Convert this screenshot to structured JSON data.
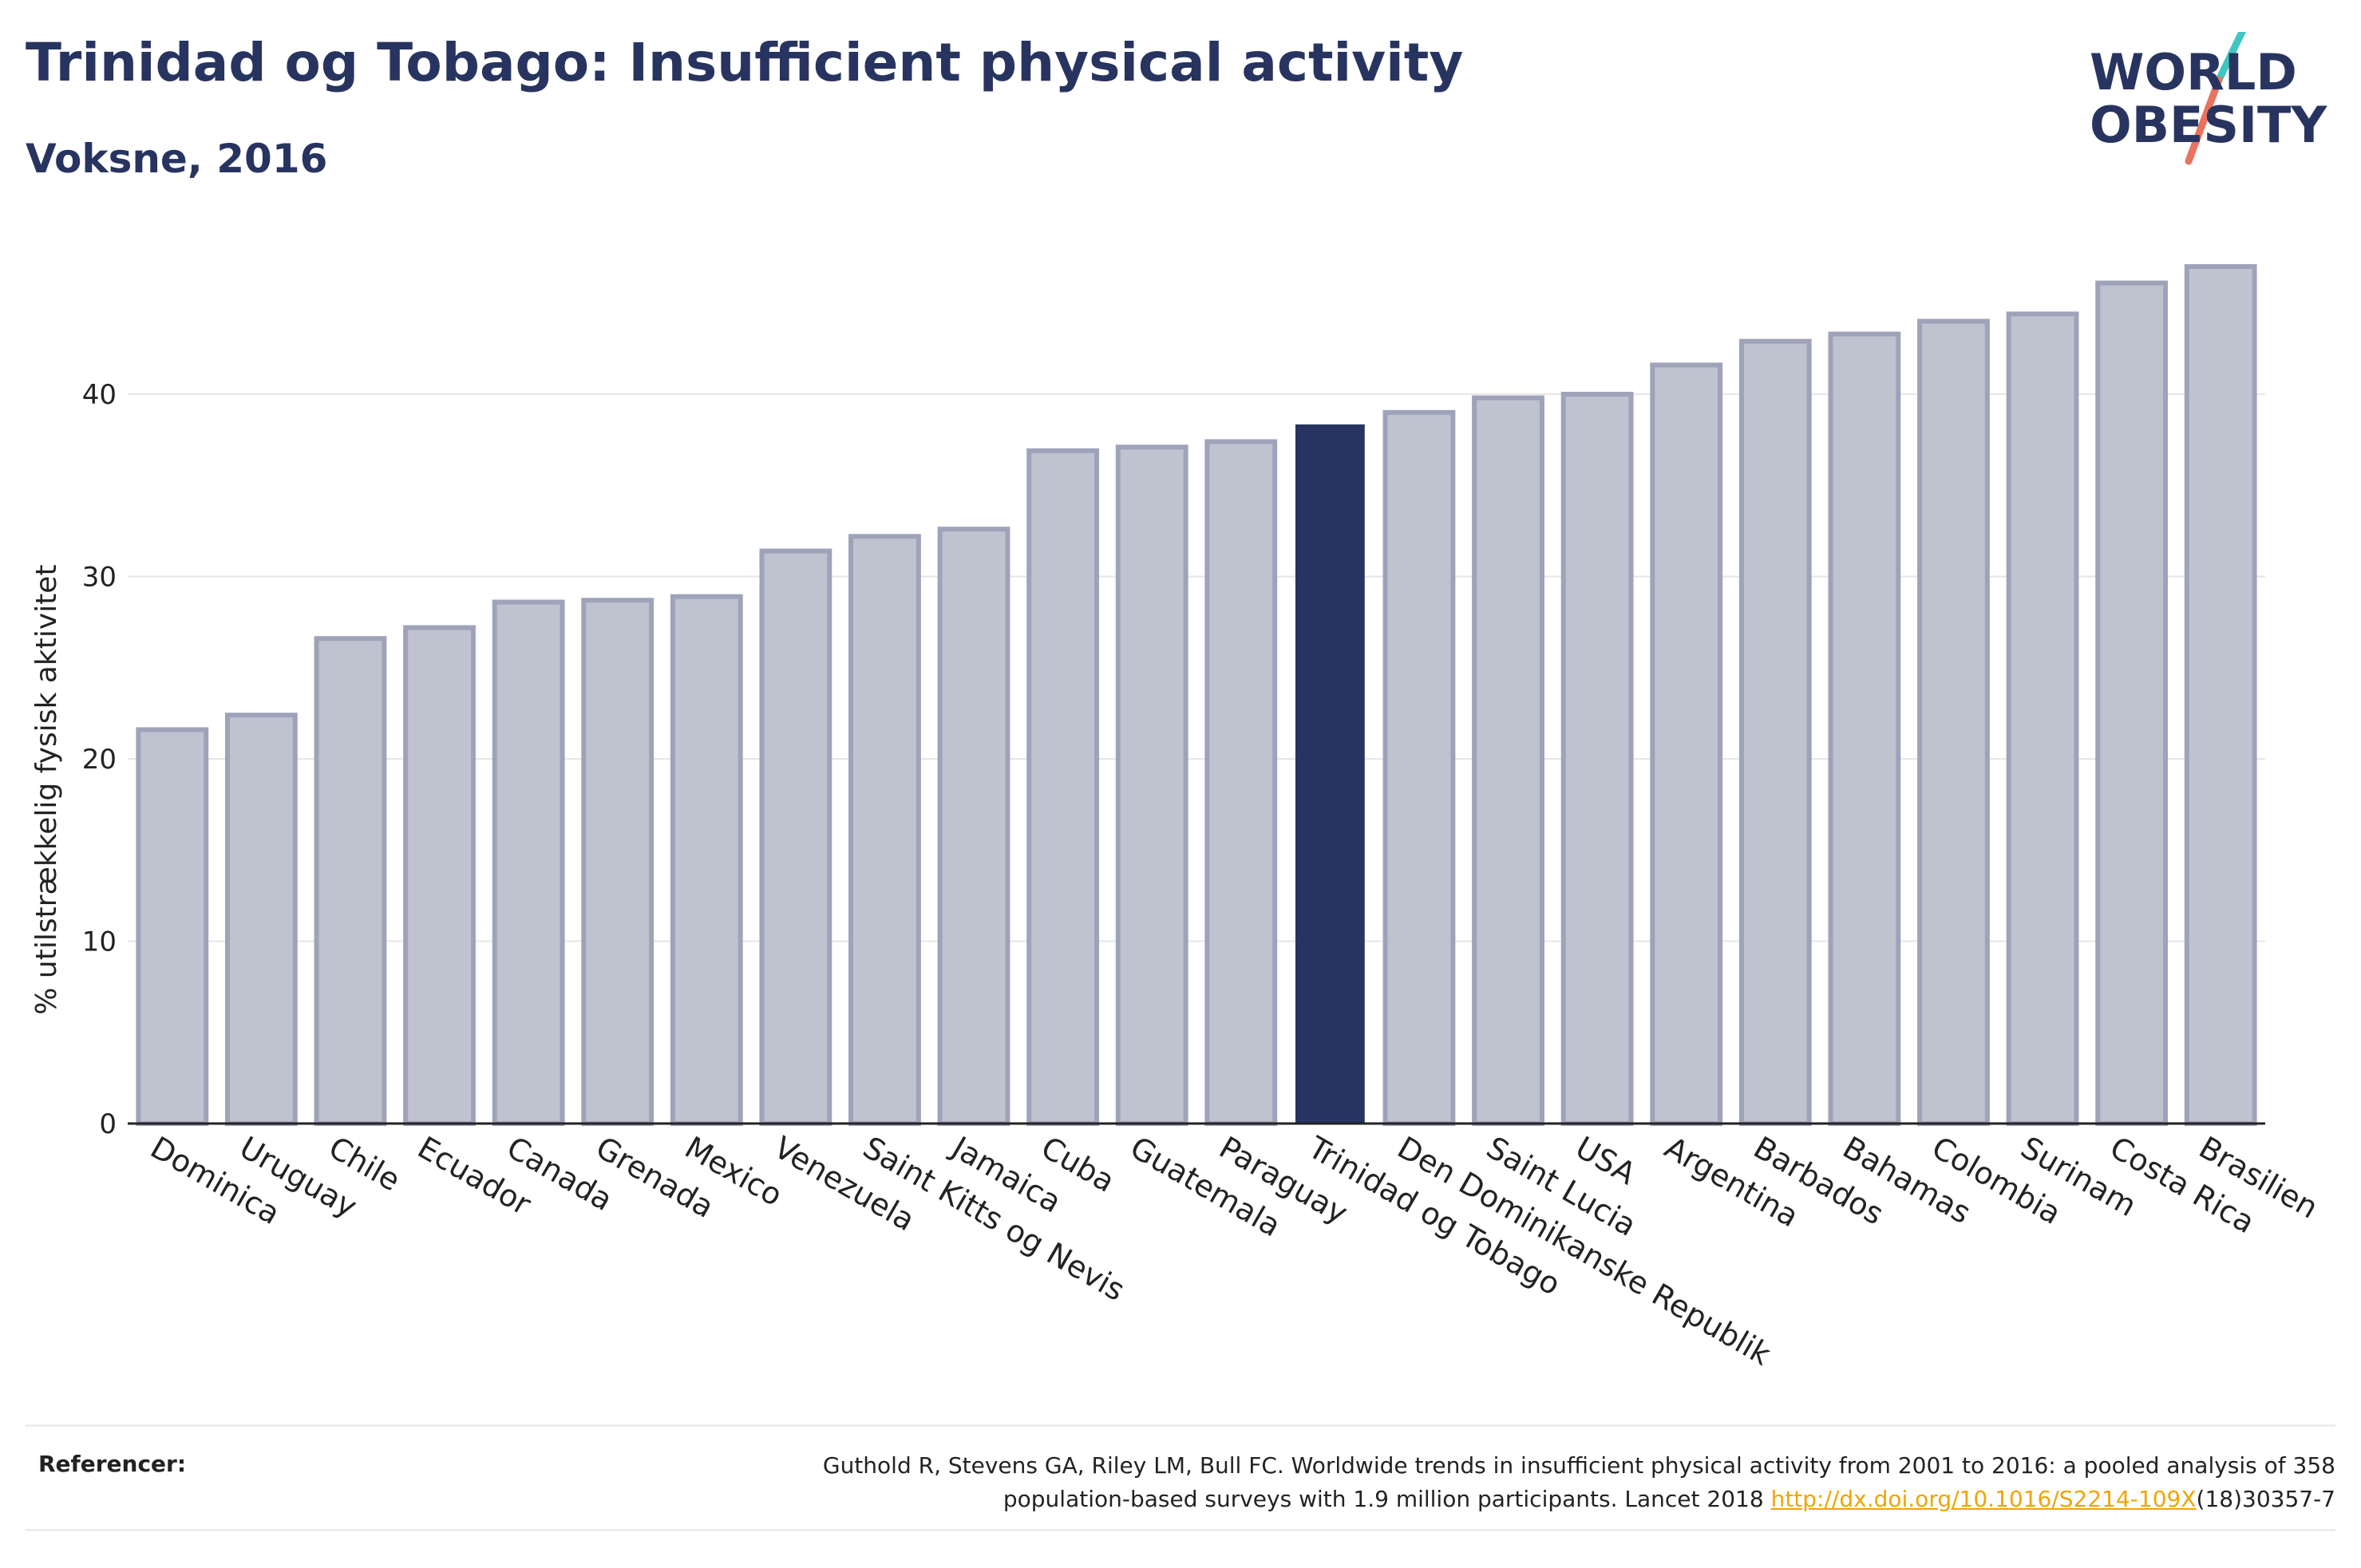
{
  "header": {
    "title": "Trinidad og Tobago: Insufficient physical activity",
    "subtitle": "Voksne, 2016"
  },
  "logo": {
    "line1": "WORLD",
    "line2": "OBESITY"
  },
  "colors": {
    "accent": "#283460",
    "bar_muted": "#bfc2cf",
    "bar_stroke": "#9ea3ba",
    "logo_teal": "#3ec7c0",
    "logo_coral": "#e8735e"
  },
  "chart_data": {
    "type": "bar",
    "ylabel": "% utilstrækkelig fysisk aktivitet",
    "ylim": [
      0,
      48
    ],
    "yticks": [
      0,
      10,
      20,
      30,
      40
    ],
    "grid": true,
    "highlight": "Trinidad og Tobago",
    "categories": [
      "Dominica",
      "Uruguay",
      "Chile",
      "Ecuador",
      "Canada",
      "Grenada",
      "Mexico",
      "Venezuela",
      "Saint Kitts og Nevis",
      "Jamaica",
      "Cuba",
      "Guatemala",
      "Paraguay",
      "Trinidad og Tobago",
      "Den Dominikanske Republik",
      "Saint Lucia",
      "USA",
      "Argentina",
      "Barbados",
      "Bahamas",
      "Colombia",
      "Surinam",
      "Costa Rica",
      "Brasilien"
    ],
    "values": [
      21.6,
      22.4,
      26.6,
      27.2,
      28.6,
      28.7,
      28.9,
      31.4,
      32.2,
      32.6,
      36.9,
      37.1,
      37.4,
      38.3,
      39.0,
      39.8,
      40.0,
      41.6,
      42.9,
      43.3,
      44.0,
      44.4,
      46.1,
      47.0
    ]
  },
  "footer": {
    "label": "Referencer:",
    "text_part1": "Guthold R, Stevens GA, Riley LM, Bull FC. Worldwide trends in insufficient physical activity from 2001 to 2016: a pooled analysis of 358",
    "text_part2": "population-based surveys with 1.9 million participants. Lancet 2018 ",
    "link_text": "http://dx.doi.org/10.1016/S2214-109X",
    "text_part3": "(18)30357-7"
  }
}
